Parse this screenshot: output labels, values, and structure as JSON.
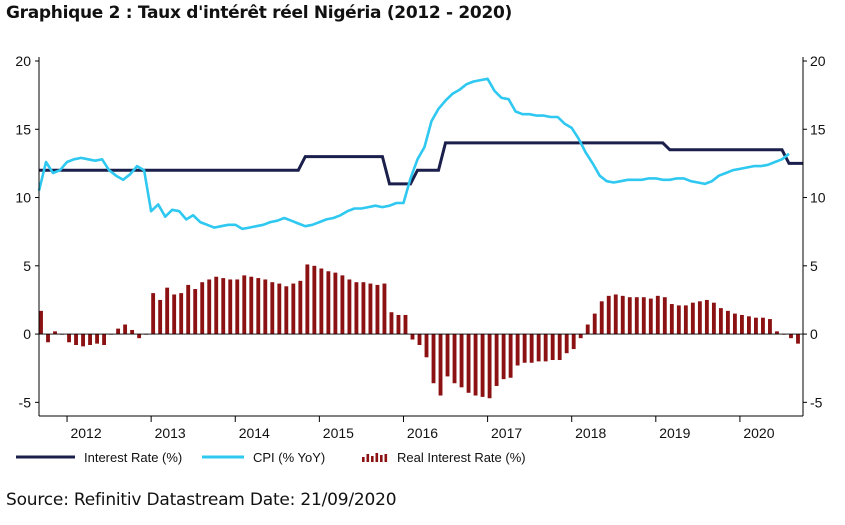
{
  "title": "Graphique 2 : Taux d'intérêt réel Nigéria (2012 - 2020)",
  "source": "Source: Refinitiv Datastream Date: 21/09/2020",
  "chart_data": {
    "type": "line",
    "title": "Graphique 2 : Taux d'intérêt réel Nigéria (2012 - 2020)",
    "xlabel": "",
    "ylabel": "",
    "xlim": [
      "2011-09",
      "2020-10"
    ],
    "ylim": [
      -6,
      20
    ],
    "yticks": [
      -5,
      0,
      5,
      10,
      15,
      20
    ],
    "ytick_labels": [
      "-5",
      "0",
      "5",
      "10",
      "15",
      "20"
    ],
    "y2ticks": [
      -5,
      0,
      5,
      10,
      15,
      20
    ],
    "y2tick_labels": [
      "-5",
      "0",
      "5",
      "10",
      "15",
      "20"
    ],
    "xtick_labels": [
      {
        "label": "2012",
        "x": "2012-03"
      },
      {
        "label": "2013",
        "x": "2013-03"
      },
      {
        "label": "2014",
        "x": "2014-03"
      },
      {
        "label": "2015",
        "x": "2015-03"
      },
      {
        "label": "2016",
        "x": "2016-03"
      },
      {
        "label": "2017",
        "x": "2017-03"
      },
      {
        "label": "2018",
        "x": "2018-03"
      },
      {
        "label": "2019",
        "x": "2019-03"
      },
      {
        "label": "2020",
        "x": "2020-03"
      }
    ],
    "grid": false,
    "legend_position": "bottom",
    "series": [
      {
        "name": "Interest Rate (%)",
        "kind": "step",
        "color": "#1b1f4b",
        "points": [
          [
            "2011-09",
            12
          ],
          [
            "2014-10",
            12
          ],
          [
            "2014-11",
            13
          ],
          [
            "2015-10",
            13
          ],
          [
            "2015-11",
            11
          ],
          [
            "2016-02",
            11
          ],
          [
            "2016-03",
            12
          ],
          [
            "2016-06",
            12
          ],
          [
            "2016-07",
            14
          ],
          [
            "2019-02",
            14
          ],
          [
            "2019-03",
            13.5
          ],
          [
            "2020-07",
            13.5
          ],
          [
            "2020-08",
            12.5
          ],
          [
            "2020-10",
            12.5
          ]
        ]
      },
      {
        "name": "CPI (% YoY)",
        "kind": "line",
        "color": "#2ec8f0",
        "points": [
          [
            "2011-09",
            10.5
          ],
          [
            "2011-10",
            12.6
          ],
          [
            "2011-11",
            11.8
          ],
          [
            "2011-12",
            12.0
          ],
          [
            "2012-01",
            12.6
          ],
          [
            "2012-02",
            12.8
          ],
          [
            "2012-03",
            12.9
          ],
          [
            "2012-04",
            12.8
          ],
          [
            "2012-05",
            12.7
          ],
          [
            "2012-06",
            12.8
          ],
          [
            "2012-07",
            12.0
          ],
          [
            "2012-08",
            11.6
          ],
          [
            "2012-09",
            11.3
          ],
          [
            "2012-10",
            11.7
          ],
          [
            "2012-11",
            12.3
          ],
          [
            "2012-12",
            12.0
          ],
          [
            "2013-01",
            9.0
          ],
          [
            "2013-02",
            9.5
          ],
          [
            "2013-03",
            8.6
          ],
          [
            "2013-04",
            9.1
          ],
          [
            "2013-05",
            9.0
          ],
          [
            "2013-06",
            8.4
          ],
          [
            "2013-07",
            8.7
          ],
          [
            "2013-08",
            8.2
          ],
          [
            "2013-09",
            8.0
          ],
          [
            "2013-10",
            7.8
          ],
          [
            "2013-11",
            7.9
          ],
          [
            "2013-12",
            8.0
          ],
          [
            "2014-01",
            8.0
          ],
          [
            "2014-02",
            7.7
          ],
          [
            "2014-03",
            7.8
          ],
          [
            "2014-04",
            7.9
          ],
          [
            "2014-05",
            8.0
          ],
          [
            "2014-06",
            8.2
          ],
          [
            "2014-07",
            8.3
          ],
          [
            "2014-08",
            8.5
          ],
          [
            "2014-09",
            8.3
          ],
          [
            "2014-10",
            8.1
          ],
          [
            "2014-11",
            7.9
          ],
          [
            "2014-12",
            8.0
          ],
          [
            "2015-01",
            8.2
          ],
          [
            "2015-02",
            8.4
          ],
          [
            "2015-03",
            8.5
          ],
          [
            "2015-04",
            8.7
          ],
          [
            "2015-05",
            9.0
          ],
          [
            "2015-06",
            9.2
          ],
          [
            "2015-07",
            9.2
          ],
          [
            "2015-08",
            9.3
          ],
          [
            "2015-09",
            9.4
          ],
          [
            "2015-10",
            9.3
          ],
          [
            "2015-11",
            9.4
          ],
          [
            "2015-12",
            9.6
          ],
          [
            "2016-01",
            9.6
          ],
          [
            "2016-02",
            11.4
          ],
          [
            "2016-03",
            12.8
          ],
          [
            "2016-04",
            13.7
          ],
          [
            "2016-05",
            15.6
          ],
          [
            "2016-06",
            16.5
          ],
          [
            "2016-07",
            17.1
          ],
          [
            "2016-08",
            17.6
          ],
          [
            "2016-09",
            17.9
          ],
          [
            "2016-10",
            18.3
          ],
          [
            "2016-11",
            18.5
          ],
          [
            "2016-12",
            18.6
          ],
          [
            "2017-01",
            18.7
          ],
          [
            "2017-02",
            17.8
          ],
          [
            "2017-03",
            17.3
          ],
          [
            "2017-04",
            17.2
          ],
          [
            "2017-05",
            16.3
          ],
          [
            "2017-06",
            16.1
          ],
          [
            "2017-07",
            16.1
          ],
          [
            "2017-08",
            16.0
          ],
          [
            "2017-09",
            16.0
          ],
          [
            "2017-10",
            15.9
          ],
          [
            "2017-11",
            15.9
          ],
          [
            "2017-12",
            15.4
          ],
          [
            "2018-01",
            15.1
          ],
          [
            "2018-02",
            14.3
          ],
          [
            "2018-03",
            13.3
          ],
          [
            "2018-04",
            12.5
          ],
          [
            "2018-05",
            11.6
          ],
          [
            "2018-06",
            11.2
          ],
          [
            "2018-07",
            11.1
          ],
          [
            "2018-08",
            11.2
          ],
          [
            "2018-09",
            11.3
          ],
          [
            "2018-10",
            11.3
          ],
          [
            "2018-11",
            11.3
          ],
          [
            "2018-12",
            11.4
          ],
          [
            "2019-01",
            11.4
          ],
          [
            "2019-02",
            11.3
          ],
          [
            "2019-03",
            11.3
          ],
          [
            "2019-04",
            11.4
          ],
          [
            "2019-05",
            11.4
          ],
          [
            "2019-06",
            11.2
          ],
          [
            "2019-07",
            11.1
          ],
          [
            "2019-08",
            11.0
          ],
          [
            "2019-09",
            11.2
          ],
          [
            "2019-10",
            11.6
          ],
          [
            "2019-11",
            11.8
          ],
          [
            "2019-12",
            12.0
          ],
          [
            "2020-01",
            12.1
          ],
          [
            "2020-02",
            12.2
          ],
          [
            "2020-03",
            12.3
          ],
          [
            "2020-04",
            12.3
          ],
          [
            "2020-05",
            12.4
          ],
          [
            "2020-06",
            12.6
          ],
          [
            "2020-07",
            12.8
          ],
          [
            "2020-08",
            13.2
          ]
        ]
      },
      {
        "name": "Real Interest Rate (%)",
        "kind": "bar",
        "color": "#8b1113",
        "points": [
          [
            "2011-09",
            1.7
          ],
          [
            "2011-10",
            -0.6
          ],
          [
            "2011-11",
            0.2
          ],
          [
            "2011-12",
            0.0
          ],
          [
            "2012-01",
            -0.6
          ],
          [
            "2012-02",
            -0.8
          ],
          [
            "2012-03",
            -0.9
          ],
          [
            "2012-04",
            -0.8
          ],
          [
            "2012-05",
            -0.7
          ],
          [
            "2012-06",
            -0.8
          ],
          [
            "2012-07",
            0.0
          ],
          [
            "2012-08",
            0.4
          ],
          [
            "2012-09",
            0.7
          ],
          [
            "2012-10",
            0.3
          ],
          [
            "2012-11",
            -0.3
          ],
          [
            "2012-12",
            0.0
          ],
          [
            "2013-01",
            3.0
          ],
          [
            "2013-02",
            2.5
          ],
          [
            "2013-03",
            3.4
          ],
          [
            "2013-04",
            2.9
          ],
          [
            "2013-05",
            3.0
          ],
          [
            "2013-06",
            3.6
          ],
          [
            "2013-07",
            3.3
          ],
          [
            "2013-08",
            3.8
          ],
          [
            "2013-09",
            4.0
          ],
          [
            "2013-10",
            4.2
          ],
          [
            "2013-11",
            4.1
          ],
          [
            "2013-12",
            4.0
          ],
          [
            "2014-01",
            4.0
          ],
          [
            "2014-02",
            4.3
          ],
          [
            "2014-03",
            4.2
          ],
          [
            "2014-04",
            4.1
          ],
          [
            "2014-05",
            4.0
          ],
          [
            "2014-06",
            3.8
          ],
          [
            "2014-07",
            3.7
          ],
          [
            "2014-08",
            3.5
          ],
          [
            "2014-09",
            3.7
          ],
          [
            "2014-10",
            3.9
          ],
          [
            "2014-11",
            5.1
          ],
          [
            "2014-12",
            5.0
          ],
          [
            "2015-01",
            4.8
          ],
          [
            "2015-02",
            4.6
          ],
          [
            "2015-03",
            4.5
          ],
          [
            "2015-04",
            4.3
          ],
          [
            "2015-05",
            4.0
          ],
          [
            "2015-06",
            3.8
          ],
          [
            "2015-07",
            3.8
          ],
          [
            "2015-08",
            3.7
          ],
          [
            "2015-09",
            3.6
          ],
          [
            "2015-10",
            3.7
          ],
          [
            "2015-11",
            1.6
          ],
          [
            "2015-12",
            1.4
          ],
          [
            "2016-01",
            1.4
          ],
          [
            "2016-02",
            -0.4
          ],
          [
            "2016-03",
            -0.8
          ],
          [
            "2016-04",
            -1.7
          ],
          [
            "2016-05",
            -3.6
          ],
          [
            "2016-06",
            -4.5
          ],
          [
            "2016-07",
            -3.1
          ],
          [
            "2016-08",
            -3.6
          ],
          [
            "2016-09",
            -3.9
          ],
          [
            "2016-10",
            -4.3
          ],
          [
            "2016-11",
            -4.5
          ],
          [
            "2016-12",
            -4.6
          ],
          [
            "2017-01",
            -4.7
          ],
          [
            "2017-02",
            -3.8
          ],
          [
            "2017-03",
            -3.3
          ],
          [
            "2017-04",
            -3.2
          ],
          [
            "2017-05",
            -2.3
          ],
          [
            "2017-06",
            -2.1
          ],
          [
            "2017-07",
            -2.1
          ],
          [
            "2017-08",
            -2.0
          ],
          [
            "2017-09",
            -2.0
          ],
          [
            "2017-10",
            -1.9
          ],
          [
            "2017-11",
            -1.9
          ],
          [
            "2017-12",
            -1.4
          ],
          [
            "2018-01",
            -1.1
          ],
          [
            "2018-02",
            -0.3
          ],
          [
            "2018-03",
            0.7
          ],
          [
            "2018-04",
            1.5
          ],
          [
            "2018-05",
            2.4
          ],
          [
            "2018-06",
            2.8
          ],
          [
            "2018-07",
            2.9
          ],
          [
            "2018-08",
            2.8
          ],
          [
            "2018-09",
            2.7
          ],
          [
            "2018-10",
            2.7
          ],
          [
            "2018-11",
            2.7
          ],
          [
            "2018-12",
            2.6
          ],
          [
            "2019-01",
            2.8
          ],
          [
            "2019-02",
            2.7
          ],
          [
            "2019-03",
            2.2
          ],
          [
            "2019-04",
            2.1
          ],
          [
            "2019-05",
            2.1
          ],
          [
            "2019-06",
            2.3
          ],
          [
            "2019-07",
            2.4
          ],
          [
            "2019-08",
            2.5
          ],
          [
            "2019-09",
            2.3
          ],
          [
            "2019-10",
            1.9
          ],
          [
            "2019-11",
            1.7
          ],
          [
            "2019-12",
            1.5
          ],
          [
            "2020-01",
            1.4
          ],
          [
            "2020-02",
            1.3
          ],
          [
            "2020-03",
            1.2
          ],
          [
            "2020-04",
            1.2
          ],
          [
            "2020-05",
            1.1
          ],
          [
            "2020-06",
            0.2
          ],
          [
            "2020-07",
            0.0
          ],
          [
            "2020-08",
            -0.3
          ],
          [
            "2020-09",
            -0.7
          ]
        ]
      }
    ]
  },
  "colors": {
    "interest_rate": "#1b1f4b",
    "cpi": "#2ec8f0",
    "real_rate": "#8b1113",
    "axis": "#000000",
    "text": "#111111"
  }
}
